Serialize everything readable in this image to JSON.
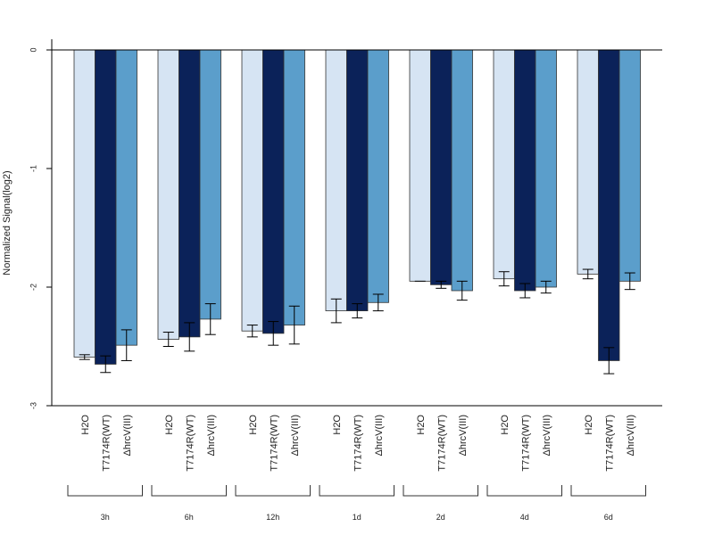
{
  "chart_data": {
    "type": "bar",
    "ylabel": "Normalized Signal(log2)",
    "ylim": [
      -3,
      0.1
    ],
    "yticks": [
      "0",
      "-1",
      "-2",
      "-3"
    ],
    "yticks_values": [
      0,
      -1,
      -2,
      -3
    ],
    "groups": [
      "3h",
      "6h",
      "12h",
      "1d",
      "2d",
      "4d",
      "6d"
    ],
    "series": [
      {
        "name": "H2O",
        "color": "#d6e4f3",
        "values": [
          -2.59,
          -2.44,
          -2.37,
          -2.2,
          -1.95,
          -1.93,
          -1.89
        ],
        "error": [
          0.02,
          0.06,
          0.05,
          0.1,
          0.0,
          0.06,
          0.04
        ]
      },
      {
        "name": "T7174R(WT)",
        "color": "#0b2259",
        "values": [
          -2.65,
          -2.42,
          -2.39,
          -2.2,
          -1.98,
          -2.03,
          -2.62
        ],
        "error": [
          0.07,
          0.12,
          0.1,
          0.06,
          0.03,
          0.06,
          0.11
        ]
      },
      {
        "name": "ΔhrcV(III)",
        "color": "#5b9ecb",
        "values": [
          -2.49,
          -2.27,
          -2.32,
          -2.13,
          -2.03,
          -2.0,
          -1.95
        ],
        "error": [
          0.13,
          0.13,
          0.16,
          0.07,
          0.08,
          0.05,
          0.07
        ]
      }
    ],
    "grid": false
  }
}
